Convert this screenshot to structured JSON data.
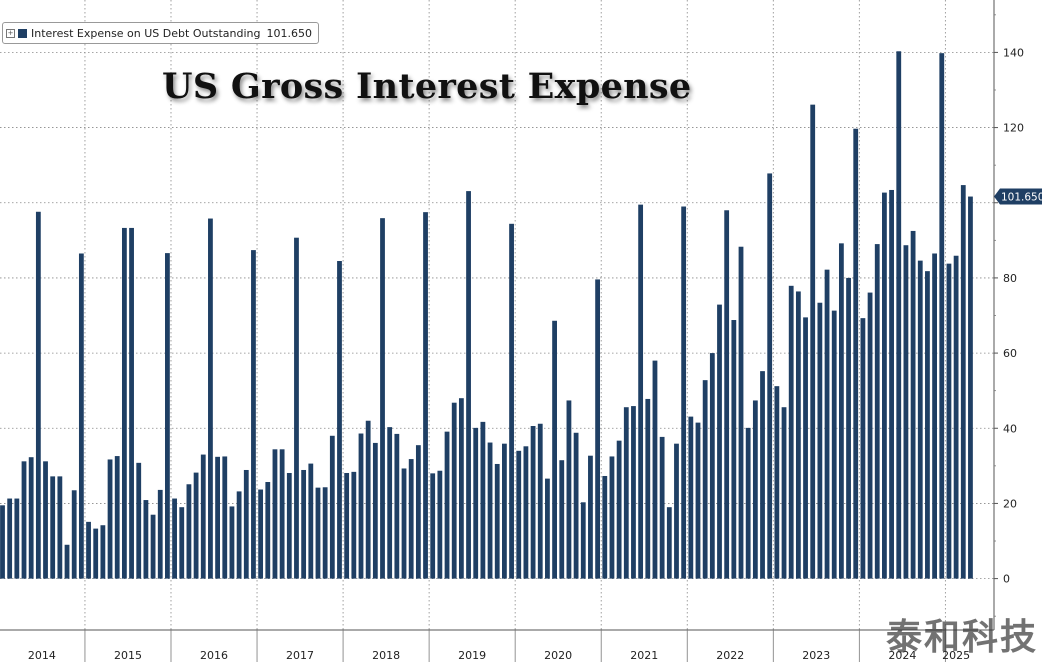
{
  "legend": {
    "label": "Interest Expense on US Debt Outstanding",
    "last_value": "101.650"
  },
  "watermark": "泰和科技",
  "chart_data": {
    "type": "bar",
    "title": "US Gross Interest Expense",
    "xlabel": "",
    "ylabel": "",
    "ylim": [
      -14,
      152
    ],
    "yticks": [
      0,
      20,
      40,
      60,
      80,
      100,
      120,
      140
    ],
    "ytick_labels": [
      "0",
      "20",
      "40",
      "60",
      "80",
      "",
      "120",
      "140"
    ],
    "y_axis_side": "right",
    "grid": true,
    "legend_position": "top-left",
    "last_value_label": "101.650",
    "bar_color": "#1f3f64",
    "x_tick_labels": [
      "2014",
      "2015",
      "2016",
      "2017",
      "2018",
      "2019",
      "2020",
      "2021",
      "2022",
      "2023",
      "2024",
      "2025"
    ],
    "series": [
      {
        "name": "Interest Expense on US Debt Outstanding",
        "values": [
          19.5,
          21.3,
          21.3,
          31.2,
          32.3,
          97.6,
          31.2,
          27.2,
          27.2,
          9.0,
          23.5,
          86.5,
          15.1,
          13.3,
          14.2,
          31.7,
          32.6,
          93.3,
          93.3,
          30.8,
          20.9,
          17.0,
          23.6,
          86.6,
          21.3,
          19.0,
          25.1,
          28.2,
          33.0,
          95.8,
          32.4,
          32.5,
          19.2,
          23.2,
          28.9,
          87.4,
          23.7,
          25.7,
          34.4,
          34.4,
          28.1,
          90.7,
          28.9,
          30.6,
          24.2,
          24.3,
          38.0,
          84.5,
          28.1,
          28.4,
          38.6,
          42.0,
          36.1,
          95.9,
          40.3,
          38.5,
          29.3,
          31.8,
          35.5,
          97.5,
          28.0,
          28.7,
          39.1,
          46.8,
          48.0,
          103.1,
          40.1,
          41.7,
          36.2,
          30.5,
          35.9,
          94.4,
          34.0,
          35.2,
          40.6,
          41.2,
          26.6,
          68.6,
          31.5,
          47.4,
          38.8,
          20.3,
          32.7,
          79.6,
          27.3,
          32.5,
          36.7,
          45.6,
          45.9,
          99.5,
          47.8,
          58.0,
          37.7,
          19.0,
          35.9,
          99.0,
          43.1,
          41.5,
          52.8,
          60.0,
          72.9,
          98.0,
          68.8,
          88.3,
          40.1,
          47.4,
          55.2,
          107.8,
          51.2,
          45.6,
          77.9,
          76.4,
          69.5,
          126.1,
          73.4,
          82.2,
          71.3,
          89.2,
          80.0,
          119.7,
          69.3,
          76.1,
          89.0,
          102.7,
          103.4,
          140.3,
          88.7,
          92.5,
          84.6,
          81.8,
          86.5,
          139.8,
          83.8,
          85.9,
          104.7,
          101.65
        ]
      }
    ]
  }
}
